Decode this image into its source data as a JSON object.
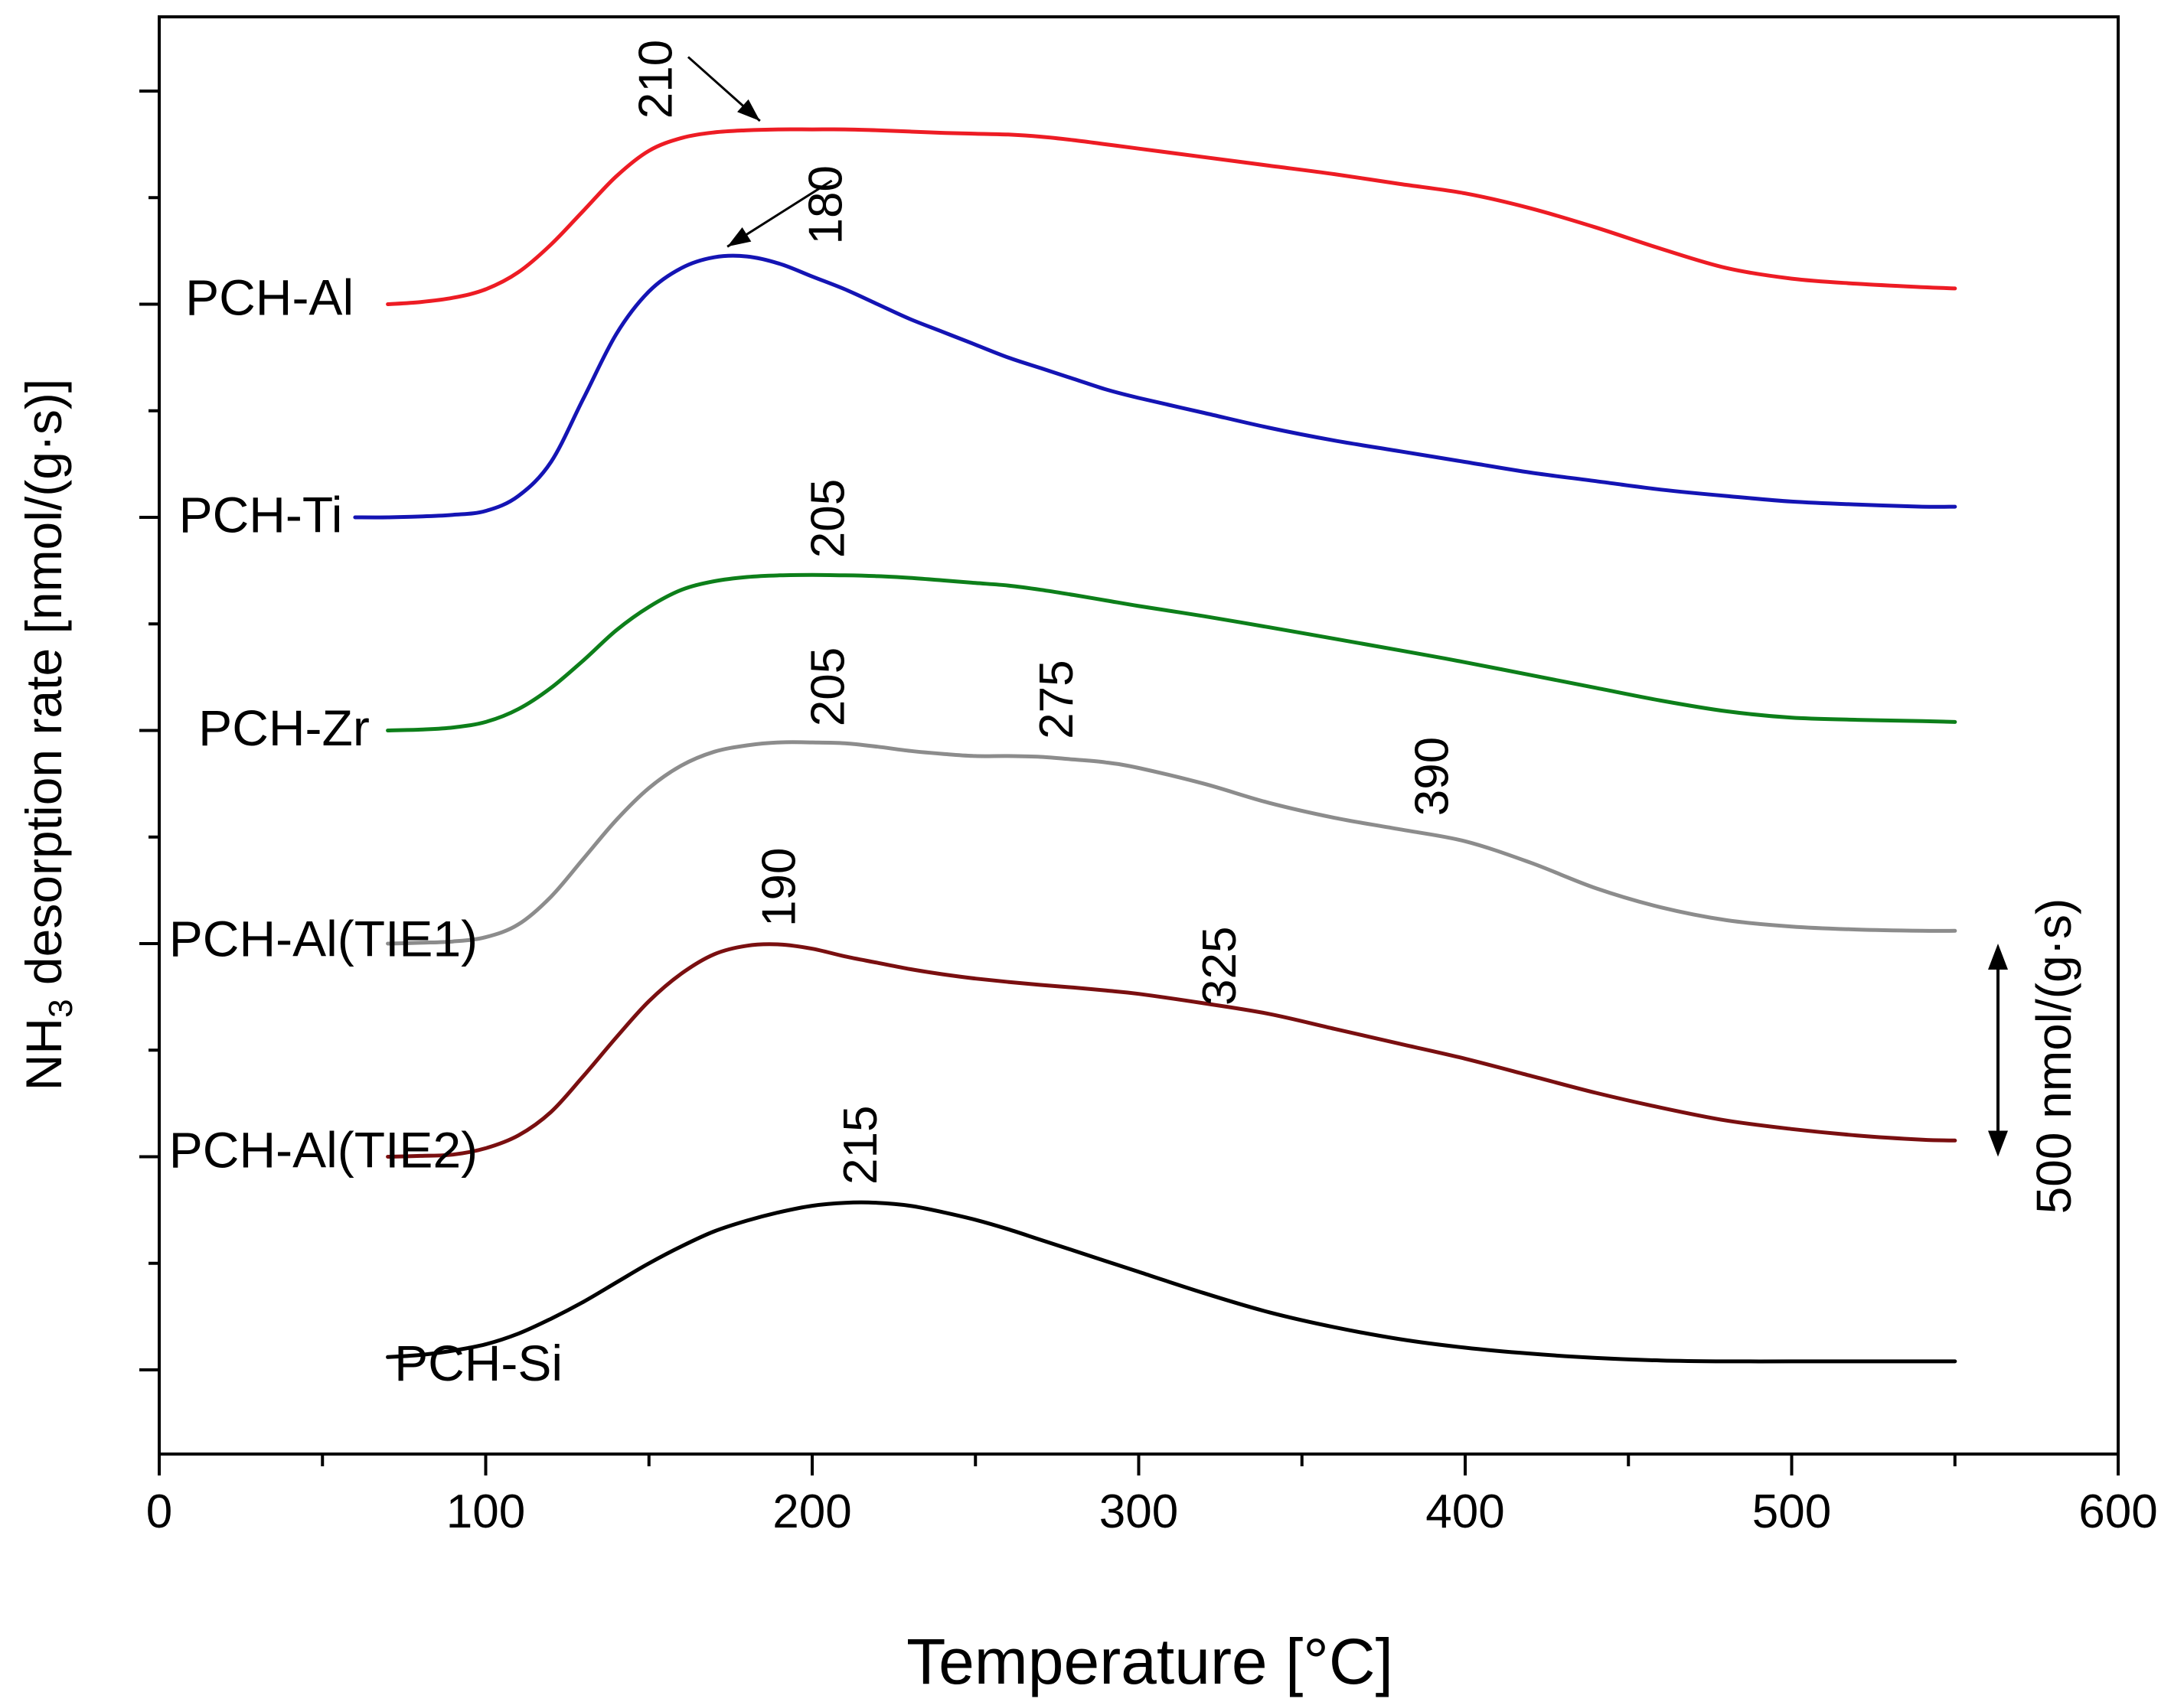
{
  "chart_data": {
    "type": "line",
    "title": "",
    "xlabel": "Temperature [°C]",
    "ylabel": {
      "prefix": "NH",
      "subscript": "3",
      "suffix": " desorption rate [nmol/(g·s)]"
    },
    "xlim": [
      0,
      600
    ],
    "x_ticks": [
      "0",
      "100",
      "200",
      "300",
      "400",
      "500",
      "600"
    ],
    "y_tick_labels": "none",
    "ylim": [
      0,
      3300
    ],
    "scale_bar": {
      "label": "500 nmol/(g·s)",
      "value": 500
    },
    "x": [
      60,
      70,
      80,
      90,
      100,
      110,
      120,
      130,
      140,
      150,
      160,
      170,
      180,
      190,
      200,
      210,
      220,
      230,
      240,
      250,
      260,
      270,
      280,
      290,
      300,
      320,
      340,
      360,
      380,
      400,
      420,
      440,
      460,
      480,
      500,
      520,
      540,
      550
    ],
    "series": [
      {
        "name": "PCH-Si",
        "color": "#000000",
        "label_anchor": {
          "x": 72,
          "y": -25
        },
        "peaks": [
          {
            "label": "215",
            "x": 215,
            "y": 395
          }
        ],
        "values": [
          null,
          30,
          35,
          45,
          60,
          85,
          120,
          160,
          205,
          250,
          290,
          325,
          350,
          370,
          385,
          392,
          392,
          385,
          370,
          352,
          330,
          305,
          280,
          255,
          230,
          180,
          135,
          100,
          72,
          52,
          38,
          28,
          22,
          20,
          20,
          20,
          20,
          20
        ]
      },
      {
        "name": "PCH-Al(TIE2)",
        "color": "#7a0f10",
        "label_anchor": {
          "x": 3,
          "y": 475
        },
        "peaks": [
          {
            "label": "190",
            "x": 190,
            "y": 1000
          },
          {
            "label": "325",
            "x": 325,
            "y": 815
          }
        ],
        "values": [
          null,
          500,
          502,
          505,
          520,
          550,
          605,
          690,
          780,
          865,
          930,
          975,
          995,
          998,
          988,
          970,
          955,
          940,
          928,
          918,
          910,
          903,
          897,
          890,
          882,
          860,
          835,
          800,
          765,
          730,
          690,
          650,
          615,
          585,
          565,
          550,
          540,
          538
        ]
      },
      {
        "name": "PCH-Al(TIE1)",
        "color": "#8c8c8c",
        "label_anchor": {
          "x": 3,
          "y": 970
        },
        "peaks": [
          {
            "label": "205",
            "x": 205,
            "y": 1470
          },
          {
            "label": "275",
            "x": 275,
            "y": 1440
          },
          {
            "label": "390",
            "x": 390,
            "y": 1260
          }
        ],
        "values": [
          null,
          1000,
          1002,
          1005,
          1015,
          1045,
          1110,
          1200,
          1290,
          1365,
          1418,
          1450,
          1465,
          1472,
          1472,
          1470,
          1462,
          1452,
          1445,
          1440,
          1440,
          1438,
          1432,
          1425,
          1412,
          1375,
          1330,
          1295,
          1268,
          1240,
          1190,
          1130,
          1085,
          1055,
          1040,
          1033,
          1030,
          1030
        ]
      },
      {
        "name": "PCH-Zr",
        "color": "#0d7f1a",
        "label_anchor": {
          "x": 12,
          "y": 1465
        },
        "peaks": [
          {
            "label": "205",
            "x": 205,
            "y": 1865
          }
        ],
        "values": [
          null,
          1500,
          1502,
          1507,
          1520,
          1550,
          1600,
          1665,
          1735,
          1790,
          1830,
          1850,
          1860,
          1864,
          1865,
          1864,
          1862,
          1858,
          1852,
          1846,
          1840,
          1830,
          1818,
          1805,
          1792,
          1768,
          1742,
          1715,
          1688,
          1660,
          1630,
          1600,
          1570,
          1545,
          1530,
          1525,
          1522,
          1520
        ]
      },
      {
        "name": "PCH-Ti",
        "color": "#1414b4",
        "label_anchor": {
          "x": 6,
          "y": 1965
        },
        "peaks": [
          {
            "label": "180",
            "x": 180,
            "y": 2610
          }
        ],
        "values": [
          2000,
          2000,
          2002,
          2006,
          2015,
          2050,
          2130,
          2280,
          2430,
          2530,
          2585,
          2610,
          2612,
          2595,
          2565,
          2535,
          2500,
          2465,
          2435,
          2405,
          2375,
          2350,
          2325,
          2300,
          2280,
          2245,
          2210,
          2180,
          2155,
          2130,
          2105,
          2085,
          2065,
          2050,
          2037,
          2030,
          2025,
          2025
        ]
      },
      {
        "name": "PCH-Al",
        "color": "#ed1c24",
        "label_anchor": {
          "x": 8,
          "y": 2475
        },
        "peaks": [
          {
            "label": "210",
            "x": 210,
            "y": 2910
          }
        ],
        "values": [
          null,
          2500,
          2505,
          2515,
          2535,
          2575,
          2640,
          2720,
          2800,
          2860,
          2890,
          2903,
          2908,
          2910,
          2910,
          2910,
          2908,
          2905,
          2902,
          2900,
          2898,
          2893,
          2885,
          2875,
          2865,
          2845,
          2825,
          2805,
          2782,
          2760,
          2725,
          2680,
          2630,
          2585,
          2560,
          2548,
          2540,
          2537
        ]
      }
    ]
  }
}
